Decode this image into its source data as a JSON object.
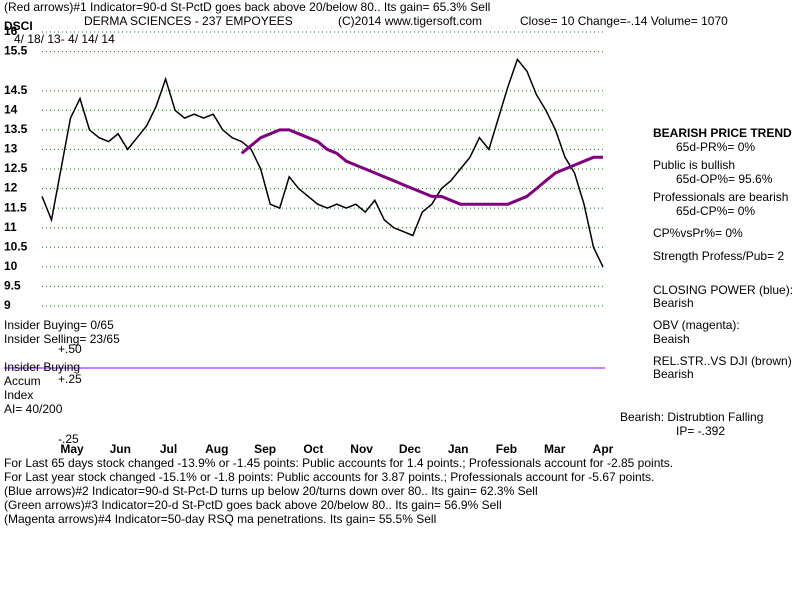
{
  "chart_data": {
    "type": "line",
    "annotations": [
      "(Red arrows)#1 Indicator=90-d St-PctD goes back above 20/below 80.. Its gain= 65.3% Sell",
      "DSCI",
      "DERMA SCIENCES - 237 EMPOYEES",
      "(C)2014 www.tigersoft.com",
      "Close=  10  Change=-.14 Volume= 1070",
      "4/ 18/ 13- 4/ 14/ 14",
      "BEARISH PRICE TREND",
      "65d-PR%= 0%",
      "Public is bullish",
      "65d-OP%= 95.6%",
      "Professionals are bearish",
      "65d-CP%= 0%",
      "CP%vsPr%=  0%",
      "Strength Profess/Pub= 2",
      "CLOSING POWER (blue):",
      "Bearish",
      "OBV (magenta):",
      "Beaish",
      "REL.STR..VS DJI (brown)",
      "Bearish",
      "Bearish: Distrubtion Falling",
      "IP= -.392",
      "Insider Buying= 0/65",
      "Insider Selling= 23/65",
      "+.50",
      "Insider Buying",
      "Accum",
      "+.25",
      "Index",
      "AI= 40/200",
      "-.25",
      "For Last 65 days stock changed -13.9% or -1.45 points:  Public accounts for  1.4 points.;  Professionals account for -2.85 points.",
      "For Last year stock changed -15.1% or -1.8 points:  Public accounts for  3.87 points.;  Professionals account for -5.67 points.",
      "(Blue arrows)#2 Indicator=90-d St-Pct-D turns up below 20/turns down over 80.. Its gain= 62.3% Sell",
      "(Green arrows)#3 Indicator=20-d St-PctD goes back above 20/below 80.. Its gain= 56.9% Sell",
      "(Magenta arrows)#4 Indicator=50-day RSQ ma penetrations. Its gain= 55.5% Sell"
    ],
    "months": [
      "May",
      "Jun",
      "Jul",
      "Aug",
      "Sep",
      "Oct",
      "Nov",
      "Dec",
      "Jan",
      "Feb",
      "Mar",
      "Apr"
    ],
    "ylim": [
      9,
      16
    ],
    "yticks": [
      9,
      9.5,
      10,
      10.5,
      11,
      11.5,
      12,
      12.5,
      13,
      13.5,
      14,
      14.5,
      15.5,
      16
    ],
    "grid": true,
    "series": [
      {
        "color": "#000000",
        "values": [
          11.8,
          11.2,
          12.5,
          13.8,
          14.3,
          13.5,
          13.3,
          13.2,
          13.4,
          13.0,
          13.3,
          13.6,
          14.1,
          14.8,
          14.0,
          13.8,
          13.9,
          13.8,
          13.9,
          13.5,
          13.3,
          13.2,
          13.0,
          12.5,
          11.6,
          11.5,
          12.3,
          12.0,
          11.8,
          11.6,
          11.5,
          11.6,
          11.5,
          11.6,
          11.4,
          11.7,
          11.2,
          11.0,
          10.9,
          10.8,
          11.4,
          11.6,
          12.0,
          12.2,
          12.5,
          12.8,
          13.3,
          13.0,
          13.8,
          14.6,
          15.3,
          15.0,
          14.4,
          14.0,
          13.5,
          12.8,
          12.4,
          11.6,
          10.5,
          10.0
        ]
      },
      {
        "color": "#800080",
        "values": [
          null,
          null,
          null,
          null,
          null,
          null,
          null,
          null,
          null,
          null,
          null,
          null,
          null,
          null,
          null,
          null,
          null,
          null,
          null,
          null,
          null,
          12.9,
          13.1,
          13.3,
          13.4,
          13.5,
          13.5,
          13.4,
          13.3,
          13.2,
          13.0,
          12.9,
          12.7,
          12.6,
          12.5,
          12.4,
          12.3,
          12.2,
          12.1,
          12.0,
          11.9,
          11.8,
          11.8,
          11.7,
          11.6,
          11.6,
          11.6,
          11.6,
          11.6,
          11.6,
          11.7,
          11.8,
          12.0,
          12.2,
          12.4,
          12.5,
          12.6,
          12.7,
          12.8,
          12.8
        ]
      }
    ]
  }
}
